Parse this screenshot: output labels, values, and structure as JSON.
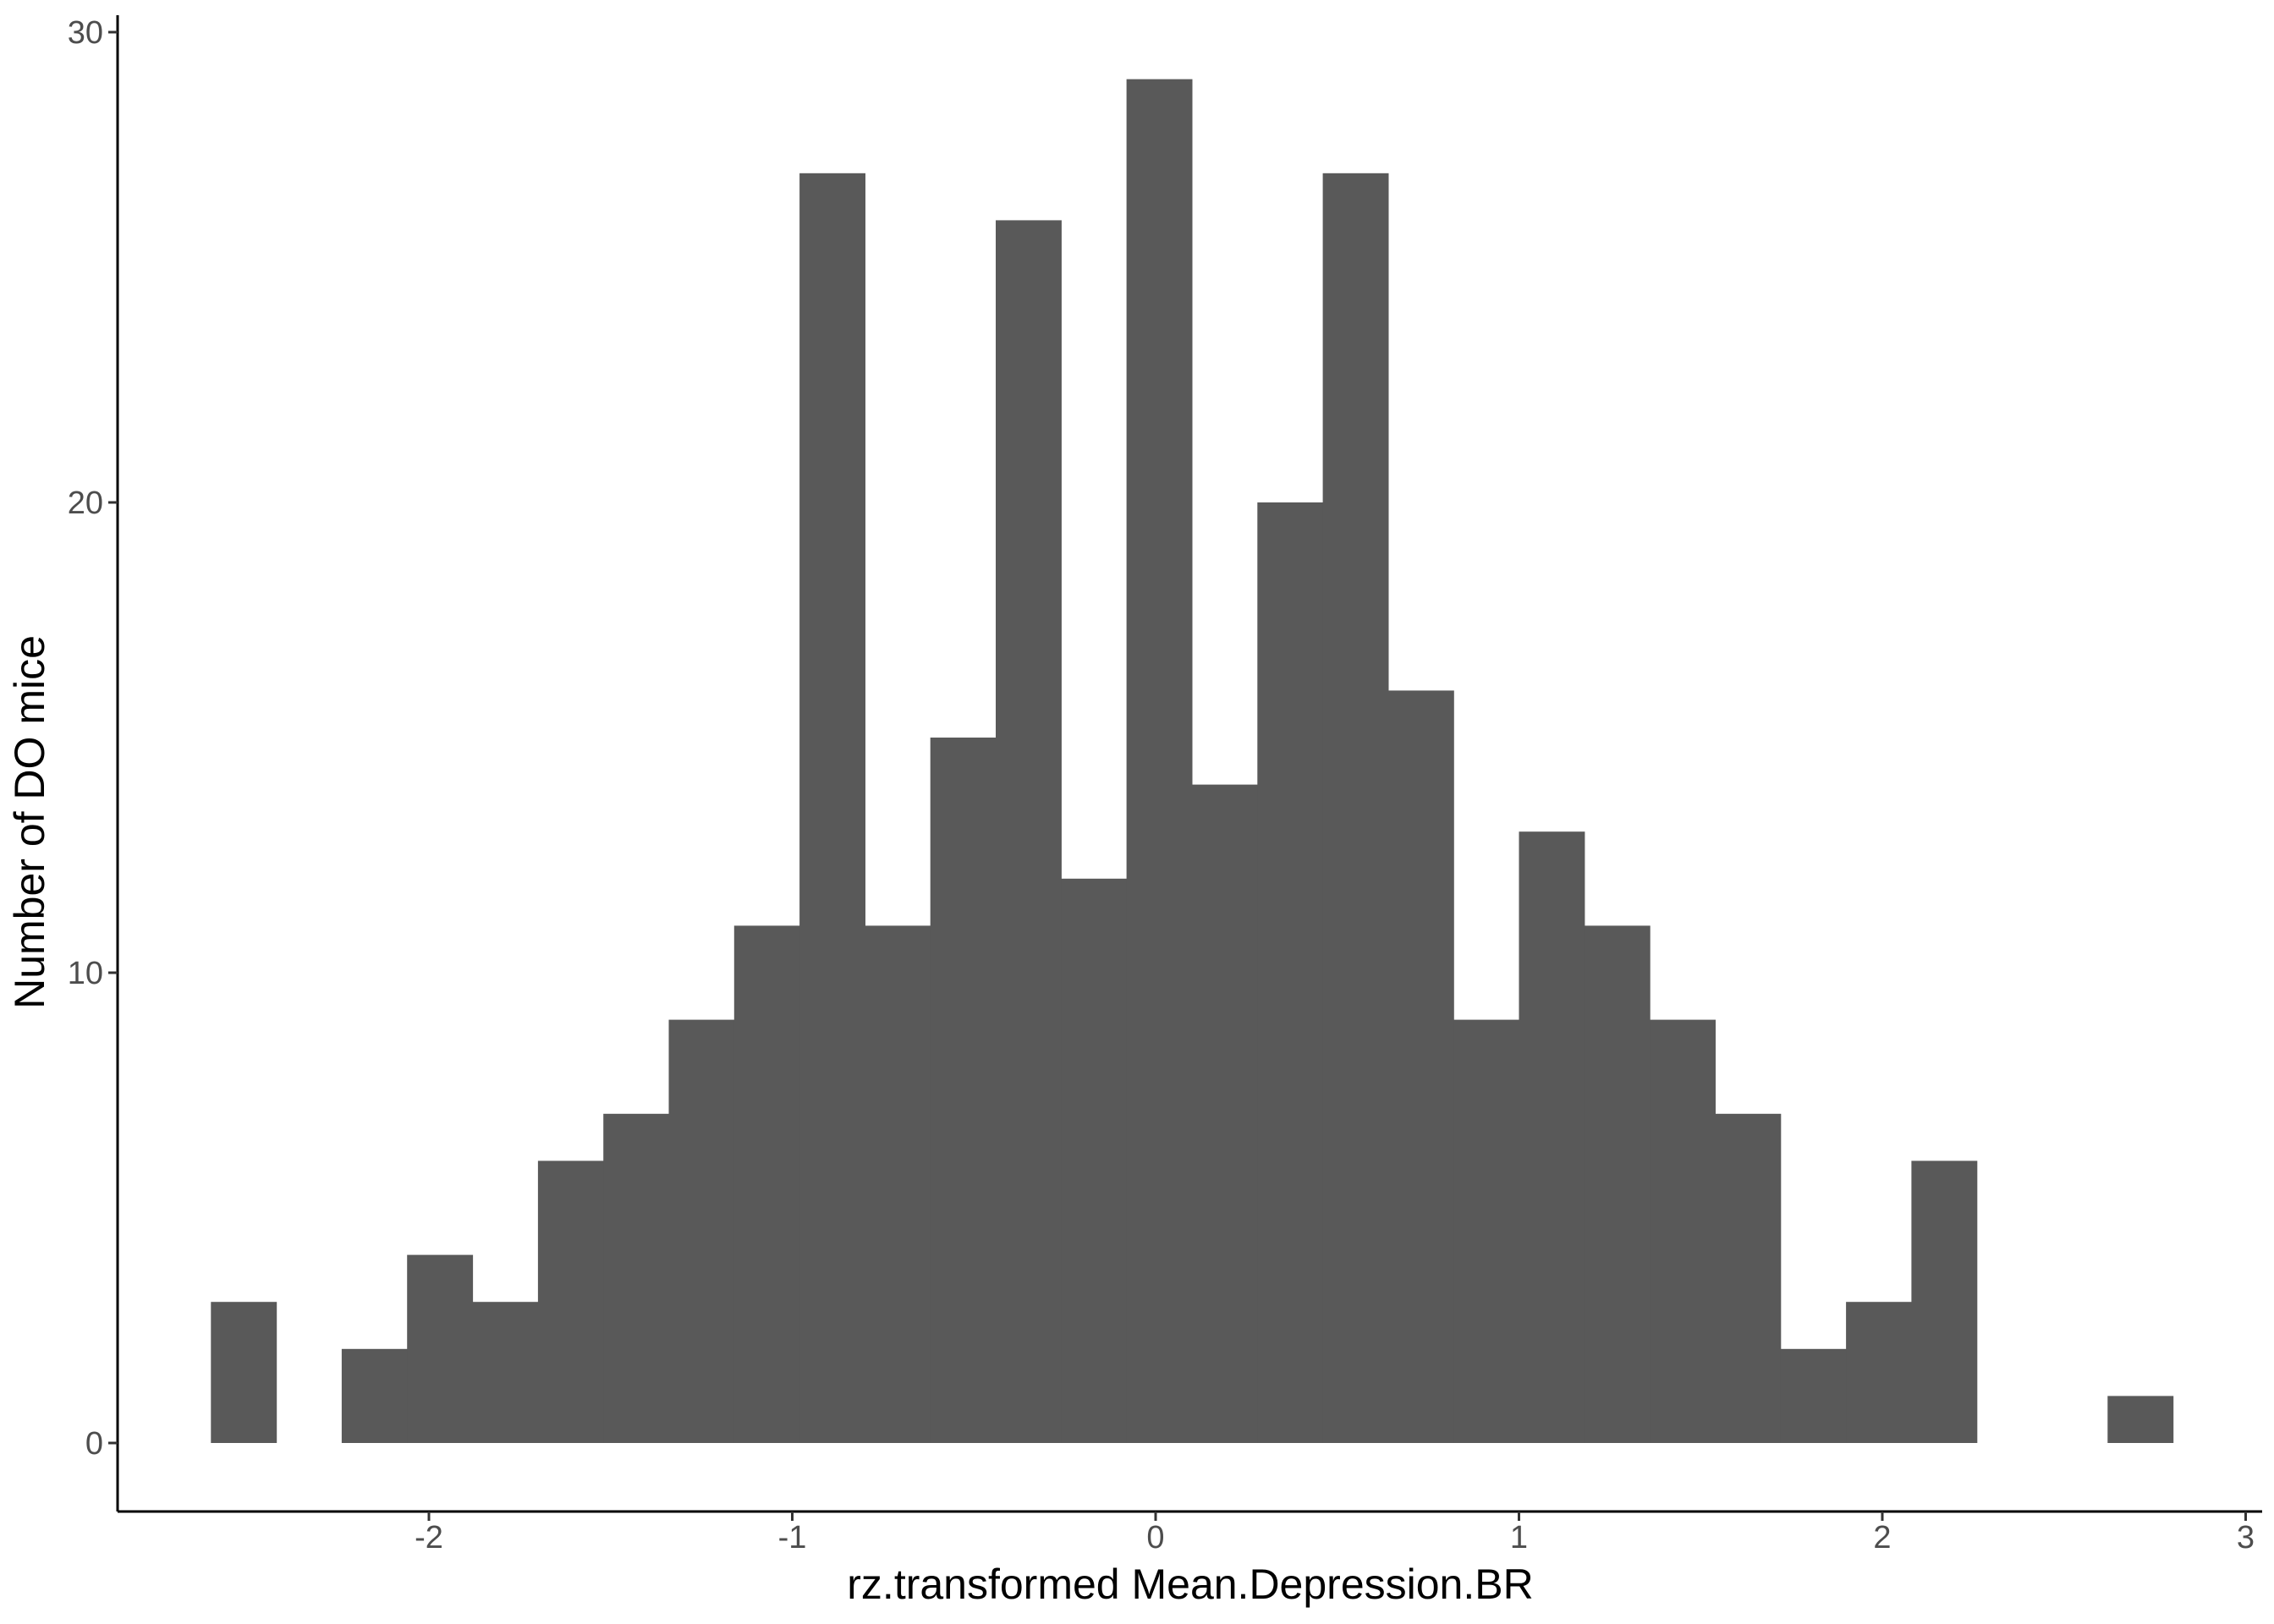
{
  "chart_data": {
    "type": "bar",
    "subtype": "histogram",
    "title": "",
    "xlabel": "rz.transformed Mean.Depression.BR",
    "ylabel": "Number of DO mice",
    "xlim": [
      -2.87,
      3.0
    ],
    "ylim": [
      -1.4,
      30.5
    ],
    "xticks": [
      -2,
      -1,
      0,
      1,
      2,
      3
    ],
    "xtick_labels": [
      "-2",
      "-1",
      "0",
      "1",
      "2",
      "3"
    ],
    "yticks": [
      0,
      10,
      20,
      30
    ],
    "ytick_labels": [
      "0",
      "10",
      "20",
      "30"
    ],
    "grid": false,
    "legend": "none",
    "bar_color": "#595959",
    "bins": [
      {
        "x0": -2.6,
        "x1": -2.42,
        "count": 3
      },
      {
        "x0": -2.24,
        "x1": -2.06,
        "count": 2
      },
      {
        "x0": -2.06,
        "x1": -1.88,
        "count": 4
      },
      {
        "x0": -1.88,
        "x1": -1.7,
        "count": 3
      },
      {
        "x0": -1.7,
        "x1": -1.52,
        "count": 6
      },
      {
        "x0": -1.52,
        "x1": -1.34,
        "count": 7
      },
      {
        "x0": -1.34,
        "x1": -1.16,
        "count": 9
      },
      {
        "x0": -1.16,
        "x1": -0.98,
        "count": 11
      },
      {
        "x0": -0.98,
        "x1": -0.8,
        "count": 27
      },
      {
        "x0": -0.8,
        "x1": -0.62,
        "count": 11
      },
      {
        "x0": -0.62,
        "x1": -0.44,
        "count": 15
      },
      {
        "x0": -0.44,
        "x1": -0.26,
        "count": 26
      },
      {
        "x0": -0.26,
        "x1": -0.08,
        "count": 12
      },
      {
        "x0": -0.08,
        "x1": 0.1,
        "count": 29
      },
      {
        "x0": 0.1,
        "x1": 0.28,
        "count": 14
      },
      {
        "x0": 0.28,
        "x1": 0.46,
        "count": 20
      },
      {
        "x0": 0.46,
        "x1": 0.64,
        "count": 27
      },
      {
        "x0": 0.64,
        "x1": 0.82,
        "count": 16
      },
      {
        "x0": 0.82,
        "x1": 1.0,
        "count": 9
      },
      {
        "x0": 1.0,
        "x1": 1.18,
        "count": 13
      },
      {
        "x0": 1.18,
        "x1": 1.36,
        "count": 11
      },
      {
        "x0": 1.36,
        "x1": 1.54,
        "count": 9
      },
      {
        "x0": 1.54,
        "x1": 1.72,
        "count": 7
      },
      {
        "x0": 1.72,
        "x1": 1.9,
        "count": 2
      },
      {
        "x0": 1.9,
        "x1": 2.08,
        "count": 3
      },
      {
        "x0": 2.08,
        "x1": 2.26,
        "count": 6
      },
      {
        "x0": 2.62,
        "x1": 2.8,
        "count": 1
      }
    ]
  }
}
